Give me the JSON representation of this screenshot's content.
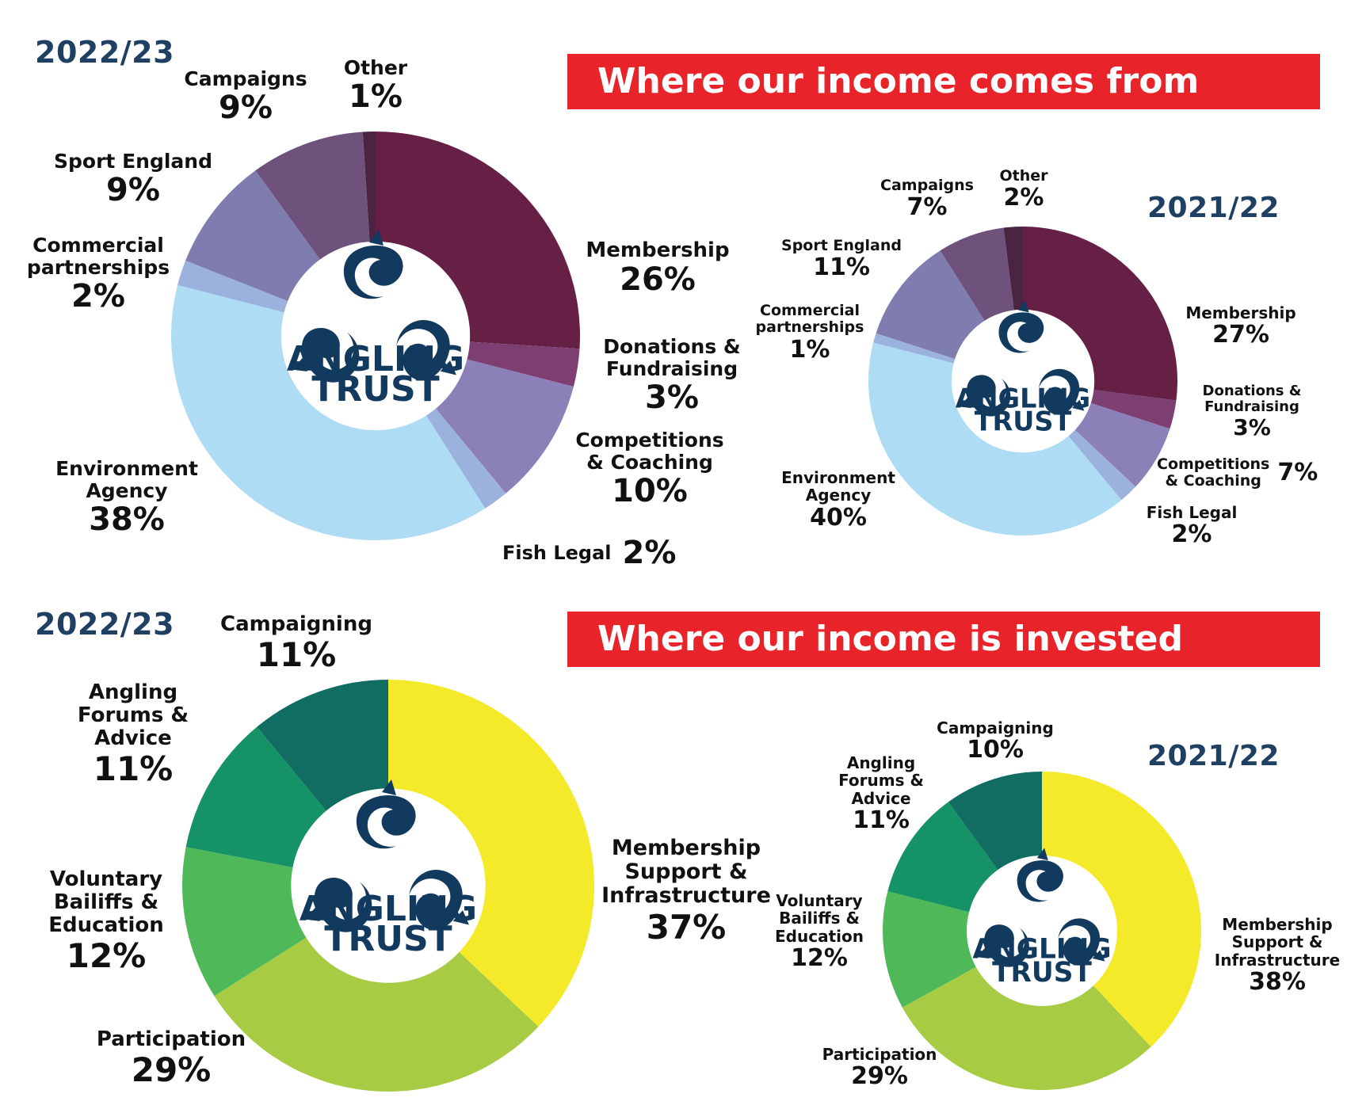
{
  "sections": [
    {
      "id": "income",
      "banner": "Where our income comes from",
      "palette": {
        "Membership": "#661f45",
        "Donations & Fundraising": "#7d3f72",
        "Competitions & Coaching": "#8c80b8",
        "Fish Legal": "#9bb2de",
        "Environment Agency": "#aedcf4",
        "Commercial partnerships": "#9bb2de",
        "Sport England": "#7f7db0",
        "Campaigns": "#6e527c",
        "Other": "#4a2440"
      }
    },
    {
      "id": "invested",
      "banner": "Where our income is invested",
      "palette": {
        "Membership Support & Infrastructure": "#f5ea2a",
        "Participation": "#a7cc44",
        "Voluntary Bailiffs & Education": "#4fb95a",
        "Angling Forums & Advice": "#159266",
        "Campaigning": "#116c62"
      }
    }
  ],
  "logo": {
    "line1": "ANGLING",
    "line2": "TRUST",
    "color": "#123a5e"
  },
  "chart_data": [
    {
      "type": "pie",
      "section": "income",
      "year": "2022/23",
      "slices": [
        {
          "label": "Membership",
          "value": 26,
          "lines": [
            "Membership"
          ],
          "pct": "26%"
        },
        {
          "label": "Donations & Fundraising",
          "value": 3,
          "lines": [
            "Donations &",
            "Fundraising"
          ],
          "pct": "3%"
        },
        {
          "label": "Competitions & Coaching",
          "value": 10,
          "lines": [
            "Competitions",
            "& Coaching"
          ],
          "pct": "10%"
        },
        {
          "label": "Fish Legal",
          "value": 2,
          "lines": [
            "Fish Legal"
          ],
          "pct": "2%"
        },
        {
          "label": "Environment Agency",
          "value": 38,
          "lines": [
            "Environment",
            "Agency"
          ],
          "pct": "38%"
        },
        {
          "label": "Commercial partnerships",
          "value": 2,
          "lines": [
            "Commercial",
            "partnerships"
          ],
          "pct": "2%"
        },
        {
          "label": "Sport England",
          "value": 9,
          "lines": [
            "Sport England"
          ],
          "pct": "9%"
        },
        {
          "label": "Campaigns",
          "value": 9,
          "lines": [
            "Campaigns"
          ],
          "pct": "9%"
        },
        {
          "label": "Other",
          "value": 1,
          "lines": [
            "Other"
          ],
          "pct": "1%"
        }
      ]
    },
    {
      "type": "pie",
      "section": "income",
      "year": "2021/22",
      "slices": [
        {
          "label": "Membership",
          "value": 27,
          "lines": [
            "Membership"
          ],
          "pct": "27%"
        },
        {
          "label": "Donations & Fundraising",
          "value": 3,
          "lines": [
            "Donations &",
            "Fundraising"
          ],
          "pct": "3%"
        },
        {
          "label": "Competitions & Coaching",
          "value": 7,
          "lines": [
            "Competitions",
            "& Coaching"
          ],
          "pct": "7%"
        },
        {
          "label": "Fish Legal",
          "value": 2,
          "lines": [
            "Fish Legal"
          ],
          "pct": "2%"
        },
        {
          "label": "Environment Agency",
          "value": 40,
          "lines": [
            "Environment",
            "Agency"
          ],
          "pct": "40%"
        },
        {
          "label": "Commercial partnerships",
          "value": 1,
          "lines": [
            "Commercial",
            "partnerships"
          ],
          "pct": "1%"
        },
        {
          "label": "Sport England",
          "value": 11,
          "lines": [
            "Sport England"
          ],
          "pct": "11%"
        },
        {
          "label": "Campaigns",
          "value": 7,
          "lines": [
            "Campaigns"
          ],
          "pct": "7%"
        },
        {
          "label": "Other",
          "value": 2,
          "lines": [
            "Other"
          ],
          "pct": "2%"
        }
      ]
    },
    {
      "type": "pie",
      "section": "invested",
      "year": "2022/23",
      "slices": [
        {
          "label": "Membership Support & Infrastructure",
          "value": 37,
          "lines": [
            "Membership",
            "Support &",
            "Infrastructure"
          ],
          "pct": "37%"
        },
        {
          "label": "Participation",
          "value": 29,
          "lines": [
            "Participation"
          ],
          "pct": "29%"
        },
        {
          "label": "Voluntary Bailiffs & Education",
          "value": 12,
          "lines": [
            "Voluntary",
            "Bailiffs &",
            "Education"
          ],
          "pct": "12%"
        },
        {
          "label": "Angling Forums & Advice",
          "value": 11,
          "lines": [
            "Angling",
            "Forums &",
            "Advice"
          ],
          "pct": "11%"
        },
        {
          "label": "Campaigning",
          "value": 11,
          "lines": [
            "Campaigning"
          ],
          "pct": "11%"
        }
      ]
    },
    {
      "type": "pie",
      "section": "invested",
      "year": "2021/22",
      "slices": [
        {
          "label": "Membership Support & Infrastructure",
          "value": 38,
          "lines": [
            "Membership",
            "Support &",
            "Infrastructure"
          ],
          "pct": "38%"
        },
        {
          "label": "Participation",
          "value": 29,
          "lines": [
            "Participation"
          ],
          "pct": "29%"
        },
        {
          "label": "Voluntary Bailiffs & Education",
          "value": 12,
          "lines": [
            "Voluntary",
            "Bailiffs &",
            "Education"
          ],
          "pct": "12%"
        },
        {
          "label": "Angling Forums & Advice",
          "value": 11,
          "lines": [
            "Angling",
            "Forums &",
            "Advice"
          ],
          "pct": "11%"
        },
        {
          "label": "Campaigning",
          "value": 10,
          "lines": [
            "Campaigning"
          ],
          "pct": "10%"
        }
      ]
    }
  ]
}
